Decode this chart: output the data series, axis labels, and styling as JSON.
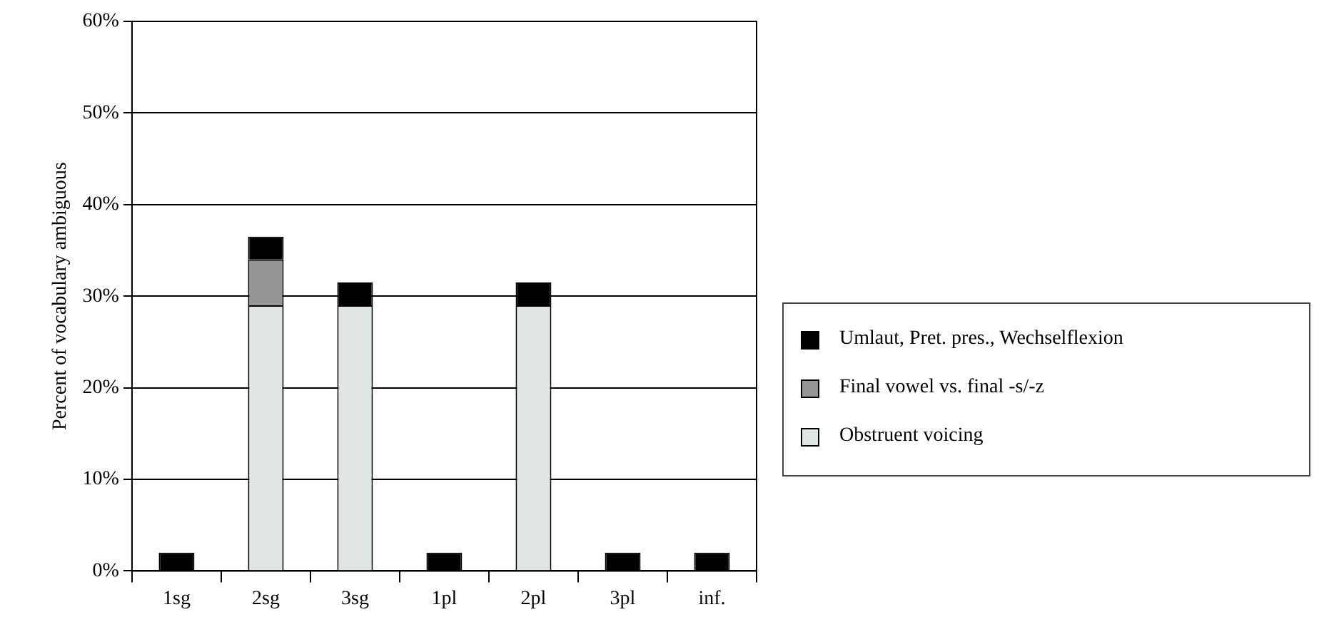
{
  "chart_data": {
    "type": "bar",
    "stacked": true,
    "ylabel": "Percent of vocabulary ambiguous",
    "categories": [
      "1sg",
      "2sg",
      "3sg",
      "1pl",
      "2pl",
      "3pl",
      "inf."
    ],
    "series": [
      {
        "name": "Obstruent voicing",
        "color": "#e0e6e2",
        "values": [
          0,
          29,
          29,
          0,
          29,
          0,
          0
        ]
      },
      {
        "name": "Final vowel vs. final -s/-z",
        "color": "#969696",
        "values": [
          0,
          5,
          0,
          0,
          0,
          0,
          0
        ]
      },
      {
        "name": "Umlaut, Pret. pres., Wechselflexion",
        "color": "#000000",
        "values": [
          2,
          2.5,
          2.5,
          2,
          2.5,
          2,
          2
        ]
      }
    ],
    "ylim": [
      0,
      60
    ],
    "yticks": [
      {
        "value": 0,
        "label": "0%"
      },
      {
        "value": 10,
        "label": "10%"
      },
      {
        "value": 20,
        "label": "20%"
      },
      {
        "value": 30,
        "label": "30%"
      },
      {
        "value": 40,
        "label": "40%"
      },
      {
        "value": 50,
        "label": "50%"
      },
      {
        "value": 60,
        "label": "60%"
      }
    ],
    "grid": "y",
    "legend": "right"
  }
}
